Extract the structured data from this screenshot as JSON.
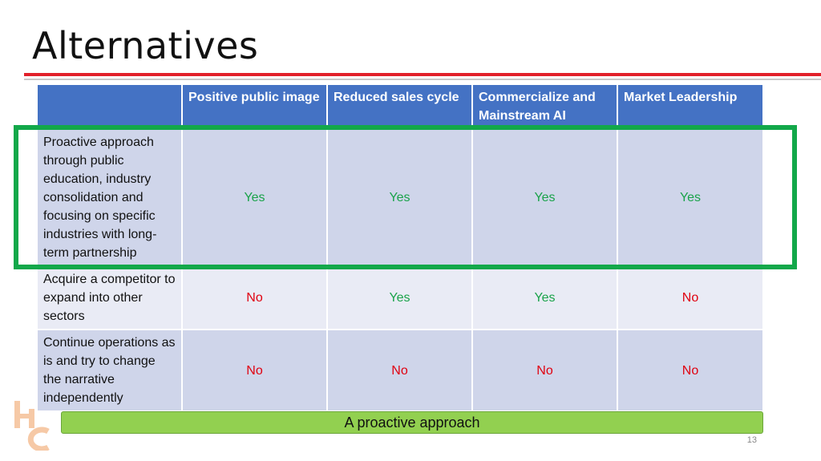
{
  "slide": {
    "title": "Alternatives",
    "page_number": "13",
    "banner_text": "A proactive approach",
    "logo_text": "HC"
  },
  "table": {
    "headers": [
      "",
      "Positive public image",
      "Reduced sales cycle",
      "Commercialize and Mainstream AI",
      "Market Leadership"
    ],
    "rows": [
      {
        "label": "Proactive approach through public education, industry consolidation and focusing on specific industries with long-term partnership",
        "values": [
          "Yes",
          "Yes",
          "Yes",
          "Yes"
        ]
      },
      {
        "label": "Acquire a competitor to expand into other sectors",
        "values": [
          "No",
          "Yes",
          "Yes",
          "No"
        ]
      },
      {
        "label": "Continue operations as is and try to change the narrative independently",
        "values": [
          "No",
          "No",
          "No",
          "No"
        ]
      }
    ]
  },
  "colors": {
    "header_blue": "#4472c4",
    "yes_green": "#1aa34a",
    "no_red": "#e0000f",
    "highlight_green": "#12a84a",
    "banner_green": "#92d050",
    "accent_red": "#e2202a"
  }
}
